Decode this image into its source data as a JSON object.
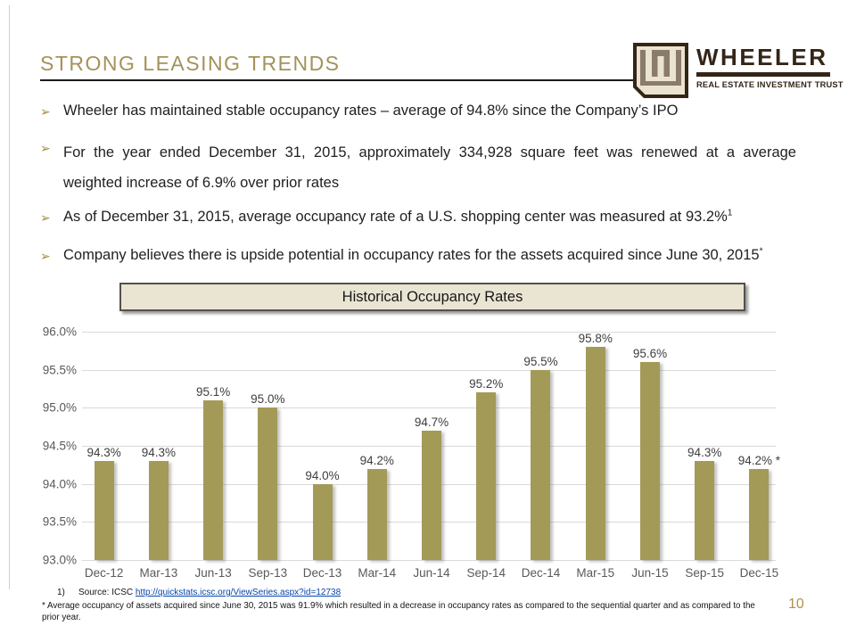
{
  "slide": {
    "title": "STRONG LEASING TRENDS",
    "page_number": "10",
    "bullet_marker": "➢"
  },
  "logo": {
    "wordmark": "WHEELER",
    "tagline": "REAL ESTATE INVESTMENT TRUST"
  },
  "bullets": {
    "b1": "Wheeler has maintained stable occupancy rates – average of 94.8% since the Company’s IPO",
    "b2_line1": "For the year ended December 31, 2015, approximately 334,928 square feet was renewed at a average",
    "b2_line2": "weighted increase of 6.9% over prior rates",
    "b3": "As of December 31, 2015, average occupancy rate of a U.S. shopping center was measured at 93.2%",
    "b3_sup": "1",
    "b4": "Company believes there is upside potential in occupancy rates for the assets acquired since June 30, 2015",
    "b4_sup": "*"
  },
  "chart_data": {
    "type": "bar",
    "title": "Historical Occupancy Rates",
    "categories": [
      "Dec-12",
      "Mar-13",
      "Jun-13",
      "Sep-13",
      "Dec-13",
      "Mar-14",
      "Jun-14",
      "Sep-14",
      "Dec-14",
      "Mar-15",
      "Jun-15",
      "Sep-15",
      "Dec-15"
    ],
    "values": [
      94.3,
      94.3,
      95.1,
      95.0,
      94.0,
      94.2,
      94.7,
      95.2,
      95.5,
      95.8,
      95.6,
      94.3,
      94.2
    ],
    "data_labels": [
      "94.3%",
      "94.3%",
      "95.1%",
      "95.0%",
      "94.0%",
      "94.2%",
      "94.7%",
      "95.2%",
      "95.5%",
      "95.8%",
      "95.6%",
      "94.3%",
      "94.2% *"
    ],
    "xlabel": "",
    "ylabel": "",
    "ylim": [
      93.0,
      96.0
    ],
    "yticks": [
      "96.0%",
      "95.5%",
      "95.0%",
      "94.5%",
      "94.0%",
      "93.5%",
      "93.0%"
    ],
    "grid": true,
    "legend": "none",
    "bar_color": "#a49a58"
  },
  "footnotes": {
    "note1_number": "1)",
    "note1_label": "Source: ICSC",
    "note1_link": "http://quickstats.icsc.org/ViewSeries.aspx?id=12738",
    "note2": "* Average occupancy of assets acquired since June 30, 2015 was 91.9% which resulted in a decrease in occupancy rates as compared to the sequential quarter and as compared to the prior year."
  },
  "colors": {
    "accent_gold": "#a3925a",
    "bar_fill": "#a49a58",
    "logo_brown": "#342517",
    "logo_taupe": "#8a7b6b",
    "logo_cream": "#eae3d0",
    "chart_box_fill": "#eae5d2",
    "link_blue": "#0645ad",
    "axis_gray": "#595959",
    "page_number_gold": "#b3914d"
  }
}
